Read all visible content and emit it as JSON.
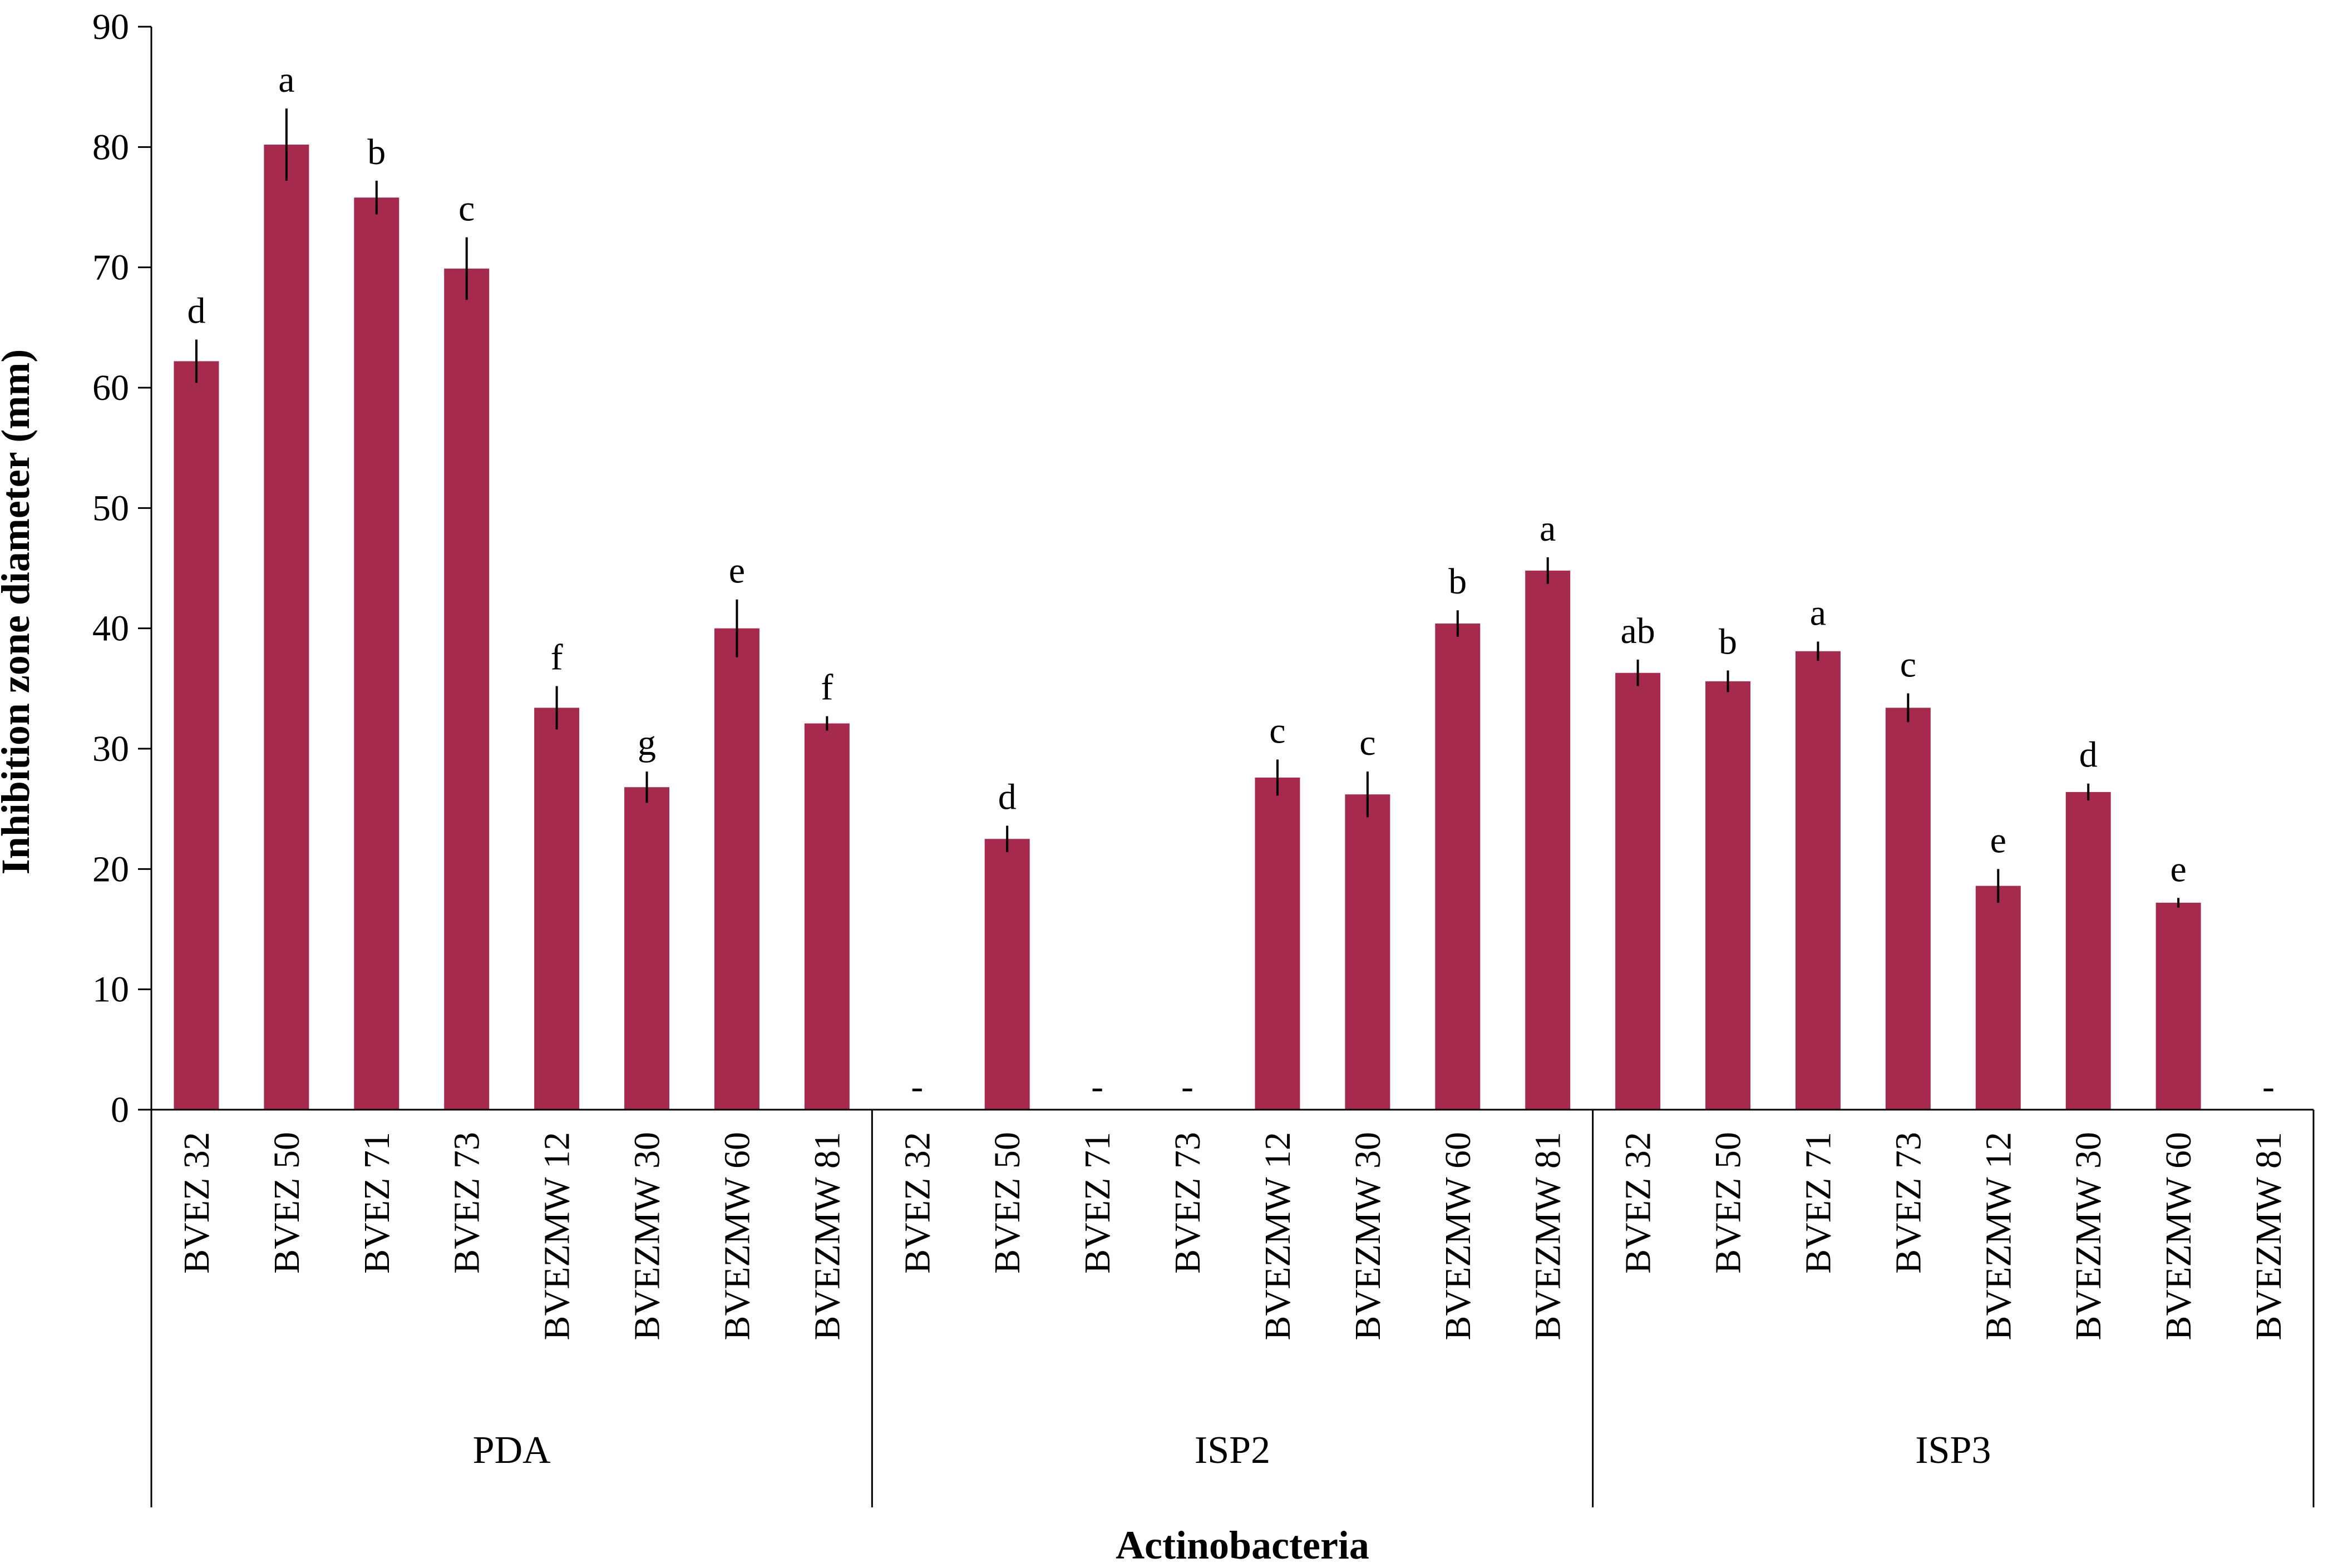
{
  "chart_data": {
    "type": "bar",
    "title": "",
    "xlabel": "Actinobacteria",
    "ylabel": "Inhibition zone diameter  (mm)",
    "ylim": [
      0,
      90
    ],
    "yticks": [
      0,
      10,
      20,
      30,
      40,
      50,
      60,
      70,
      80,
      90
    ],
    "bar_color": "#A62A4E",
    "missing_marker": "-",
    "groups": [
      {
        "name": "PDA",
        "categories": [
          "BVEZ 32",
          "BVEZ 50",
          "BVEZ 71",
          "BVEZ 73",
          "BVEZMW 12",
          "BVEZMW 30",
          "BVEZMW 60",
          "BVEZMW 81"
        ],
        "values": [
          62.2,
          80.2,
          75.8,
          69.9,
          33.4,
          26.8,
          40.0,
          32.1
        ],
        "errors": [
          1.8,
          3.0,
          1.4,
          2.6,
          1.8,
          1.3,
          2.4,
          0.6
        ],
        "letters": [
          "d",
          "a",
          "b",
          "c",
          "f",
          "g",
          "e",
          "f"
        ]
      },
      {
        "name": "ISP2",
        "categories": [
          "BVEZ 32",
          "BVEZ 50",
          "BVEZ 71",
          "BVEZ 73",
          "BVEZMW 12",
          "BVEZMW 30",
          "BVEZMW 60",
          "BVEZMW 81"
        ],
        "values": [
          null,
          22.5,
          null,
          null,
          27.6,
          26.2,
          40.4,
          44.8
        ],
        "errors": [
          0,
          1.1,
          0,
          0,
          1.5,
          1.9,
          1.1,
          1.1
        ],
        "letters": [
          "",
          "d",
          "",
          "",
          "c",
          "c",
          "b",
          "a"
        ]
      },
      {
        "name": "ISP3",
        "categories": [
          "BVEZ 32",
          "BVEZ 50",
          "BVEZ 71",
          "BVEZ 73",
          "BVEZMW 12",
          "BVEZMW 30",
          "BVEZMW 60",
          "BVEZMW 81"
        ],
        "values": [
          36.3,
          35.6,
          38.1,
          33.4,
          18.6,
          26.4,
          17.2,
          null
        ],
        "errors": [
          1.1,
          0.9,
          0.8,
          1.2,
          1.4,
          0.7,
          0.4,
          0
        ],
        "letters": [
          "ab",
          "b",
          "a",
          "c",
          "e",
          "d",
          "e",
          ""
        ]
      }
    ]
  }
}
